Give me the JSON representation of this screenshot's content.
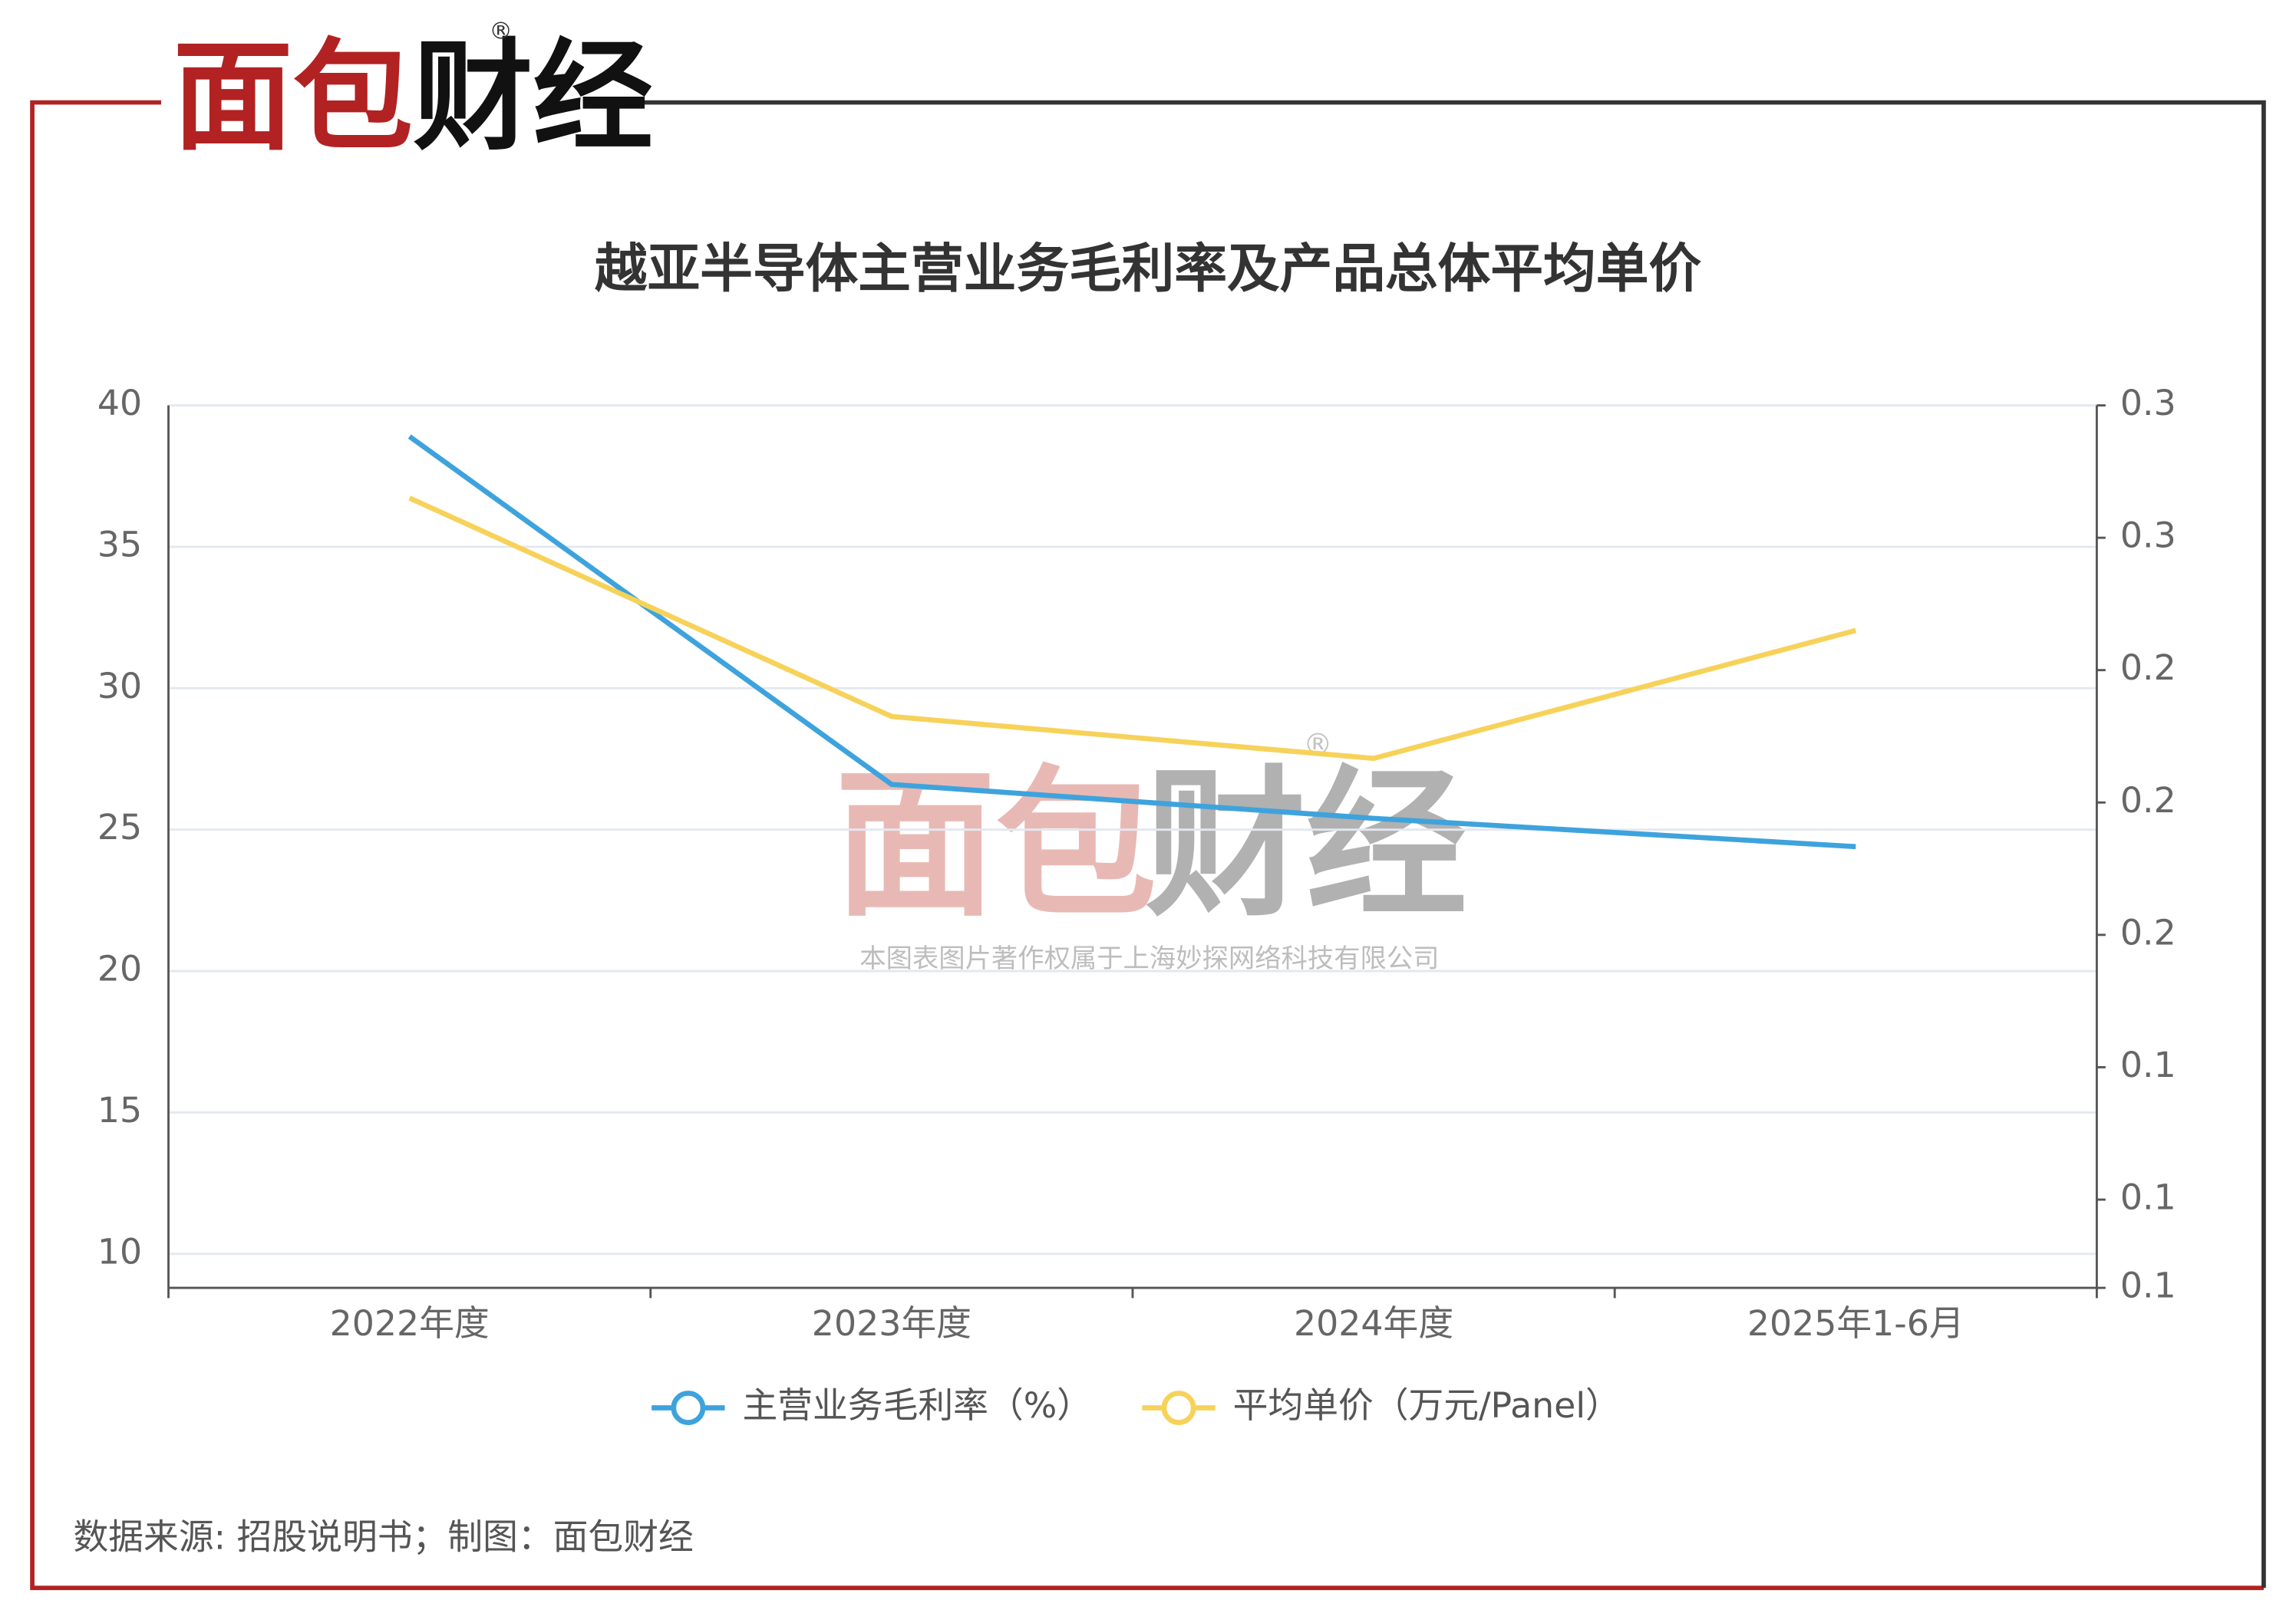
{
  "brand": {
    "name_red": "面包",
    "name_black": "财经",
    "registered": "®"
  },
  "watermark": {
    "name_red": "面包",
    "name_black": "财经",
    "registered": "®",
    "copyright": "本图表图片著作权属于上海妙探网络科技有限公司"
  },
  "chart_data": {
    "type": "line",
    "title": "越亚半导体主营业务毛利率及产品总体平均单价",
    "categories": [
      "2022年度",
      "2023年度",
      "2024年度",
      "2025年1-6月"
    ],
    "series": [
      {
        "name": "主营业务毛利率（%）",
        "color": "#3ea3dc",
        "values": [
          38.9,
          26.6,
          25.4,
          24.4
        ]
      },
      {
        "name": "平均单价（万元/Panel）",
        "color": "#f7d25a",
        "axis": "y2",
        "values": [
          0.279,
          0.2295,
          0.22,
          0.249
        ]
      }
    ],
    "ylim": [
      8.8,
      40
    ],
    "yticks": [
      10,
      15,
      20,
      25,
      30,
      35,
      40
    ],
    "y2lim": [
      0.1,
      0.3
    ],
    "y2ticks": [
      {
        "value": 0.1,
        "label": "0.1"
      },
      {
        "value": 0.12,
        "label": "0.1"
      },
      {
        "value": 0.15,
        "label": "0.1"
      },
      {
        "value": 0.18,
        "label": "0.2"
      },
      {
        "value": 0.21,
        "label": "0.2"
      },
      {
        "value": 0.24,
        "label": "0.2"
      },
      {
        "value": 0.27,
        "label": "0.3"
      },
      {
        "value": 0.3,
        "label": "0.3"
      }
    ],
    "grid": true,
    "legend": "bottom",
    "source": "数据来源: 招股说明书；制图：面包财经"
  }
}
